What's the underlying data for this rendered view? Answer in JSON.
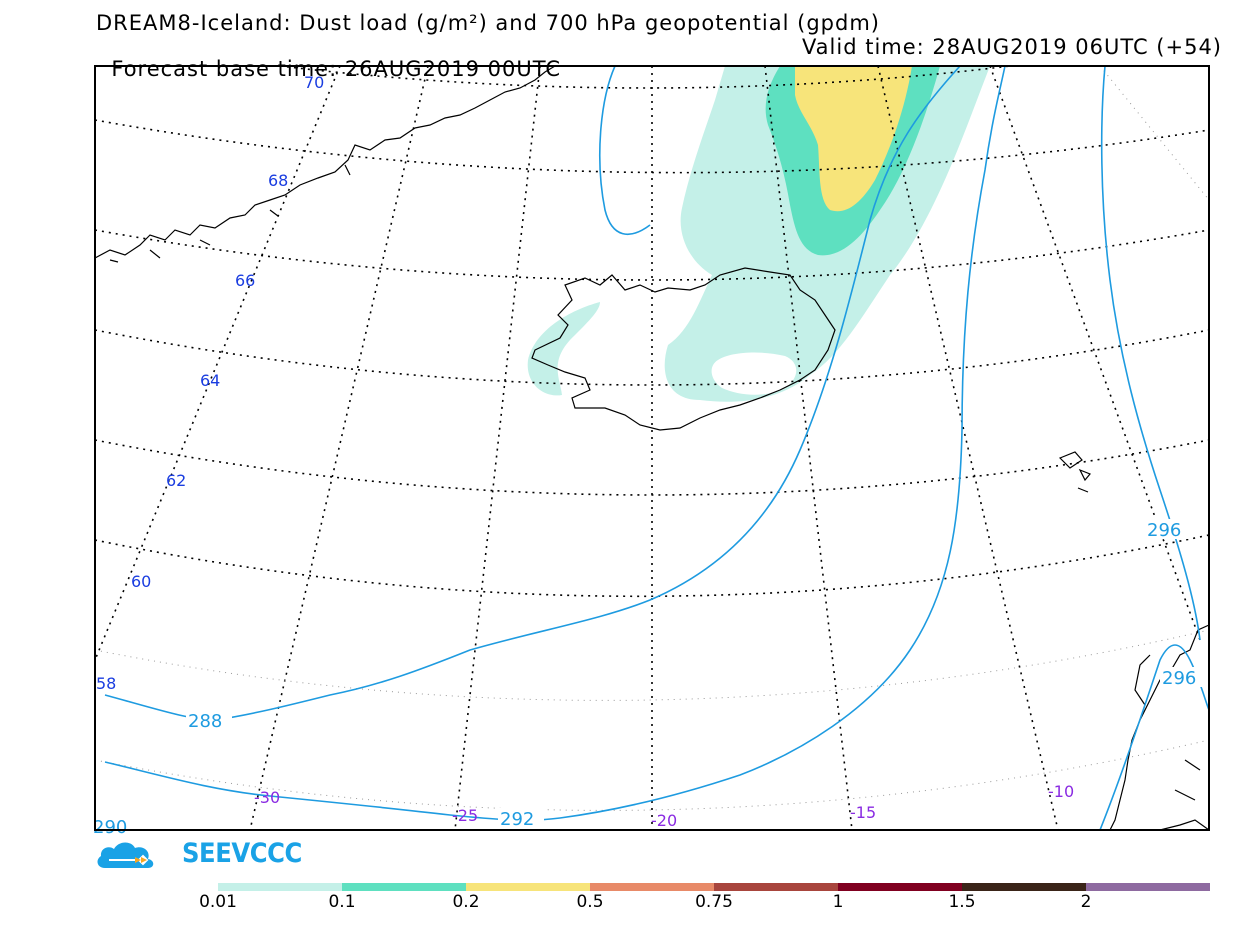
{
  "header": {
    "title_line1": "DREAM8-Iceland: Dust load (g/m²) and 700 hPa geopotential (gpdm)",
    "forecast_base": "Forecast base time: 26AUG2019 00UTC",
    "valid_time": "Valid time: 28AUG2019 06UTC (+54)"
  },
  "map": {
    "latitude_labels": [
      "70",
      "68",
      "66",
      "64",
      "62",
      "60",
      "58"
    ],
    "longitude_labels": [
      "-30",
      "-25",
      "-20",
      "-15",
      "-10"
    ],
    "contour_labels": [
      "288",
      "292",
      "296",
      "296",
      "290"
    ],
    "contour_color": "#1e9be0",
    "lat_label_color": "#1a3de0",
    "lon_label_color": "#8a2be2"
  },
  "branding": {
    "name": "SEEVCCC"
  },
  "legend": {
    "ticks": [
      "0.01",
      "0.1",
      "0.2",
      "0.5",
      "0.75",
      "1",
      "1.5",
      "2"
    ],
    "colors": [
      "#c4f0e8",
      "#5ee0c0",
      "#f7e47a",
      "#e88a68",
      "#a8453d",
      "#800020",
      "#3a2418",
      "#8e6aa0"
    ]
  }
}
